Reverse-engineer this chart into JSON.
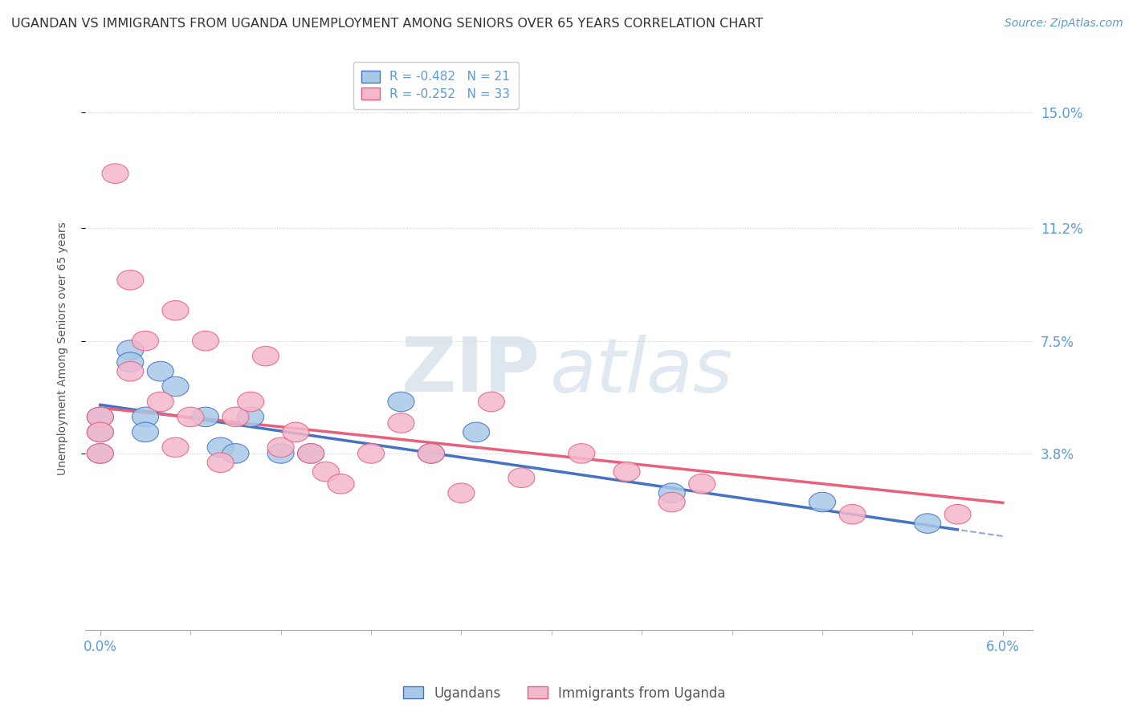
{
  "title": "UGANDAN VS IMMIGRANTS FROM UGANDA UNEMPLOYMENT AMONG SENIORS OVER 65 YEARS CORRELATION CHART",
  "source": "Source: ZipAtlas.com",
  "xlabel": "",
  "ylabel": "Unemployment Among Seniors over 65 years",
  "xlim": [
    -0.001,
    0.062
  ],
  "ylim": [
    -0.02,
    0.165
  ],
  "yticks": [
    0.038,
    0.075,
    0.112,
    0.15
  ],
  "ytick_labels": [
    "3.8%",
    "7.5%",
    "11.2%",
    "15.0%"
  ],
  "xticks": [
    0.0,
    0.06
  ],
  "xtick_labels": [
    "0.0%",
    "6.0%"
  ],
  "legend_labels": [
    "Ugandans",
    "Immigrants from Uganda"
  ],
  "r_ugandan": -0.482,
  "n_ugandan": 21,
  "r_immigrant": -0.252,
  "n_immigrant": 33,
  "color_ugandan": "#a8c8e8",
  "color_immigrant": "#f4b8cc",
  "trendline_ugandan_color": "#4472c4",
  "trendline_immigrant_color": "#e8607a",
  "watermark_zip": "ZIP",
  "watermark_atlas": "atlas",
  "background_color": "#ffffff",
  "scatter_ugandan_x": [
    0.0,
    0.0,
    0.0,
    0.002,
    0.002,
    0.003,
    0.003,
    0.004,
    0.005,
    0.007,
    0.008,
    0.009,
    0.01,
    0.012,
    0.014,
    0.02,
    0.022,
    0.025,
    0.038,
    0.048,
    0.055
  ],
  "scatter_ugandan_y": [
    0.05,
    0.045,
    0.038,
    0.072,
    0.068,
    0.05,
    0.045,
    0.065,
    0.06,
    0.05,
    0.04,
    0.038,
    0.05,
    0.038,
    0.038,
    0.055,
    0.038,
    0.045,
    0.025,
    0.022,
    0.015
  ],
  "scatter_immigrant_x": [
    0.0,
    0.0,
    0.0,
    0.001,
    0.002,
    0.002,
    0.003,
    0.004,
    0.005,
    0.005,
    0.006,
    0.007,
    0.008,
    0.009,
    0.01,
    0.011,
    0.012,
    0.013,
    0.014,
    0.015,
    0.016,
    0.018,
    0.02,
    0.022,
    0.024,
    0.026,
    0.028,
    0.032,
    0.035,
    0.038,
    0.04,
    0.05,
    0.057
  ],
  "scatter_immigrant_y": [
    0.05,
    0.045,
    0.038,
    0.13,
    0.095,
    0.065,
    0.075,
    0.055,
    0.085,
    0.04,
    0.05,
    0.075,
    0.035,
    0.05,
    0.055,
    0.07,
    0.04,
    0.045,
    0.038,
    0.032,
    0.028,
    0.038,
    0.048,
    0.038,
    0.025,
    0.055,
    0.03,
    0.038,
    0.032,
    0.022,
    0.028,
    0.018,
    0.018
  ],
  "trendline_ugandan_intercept": 0.054,
  "trendline_ugandan_slope": -0.72,
  "trendline_immigrant_intercept": 0.053,
  "trendline_immigrant_slope": -0.52
}
